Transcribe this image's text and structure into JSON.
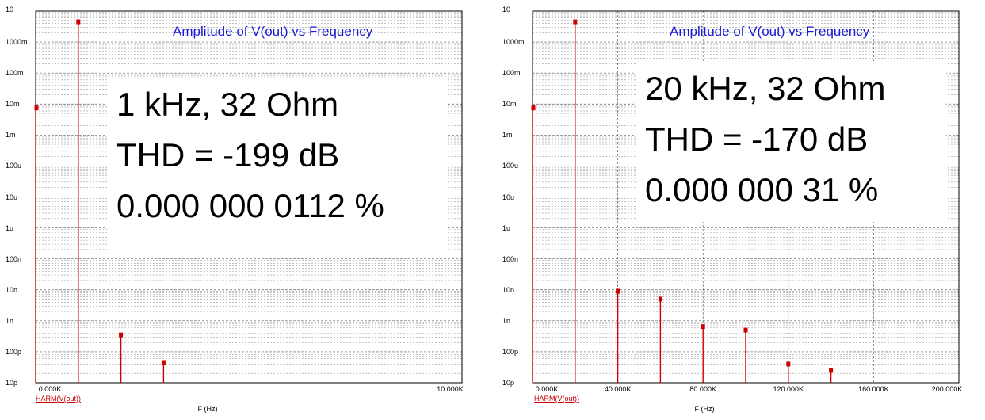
{
  "chart_data": [
    {
      "type": "bar",
      "title": "Amplitude of V(out) vs Frequency",
      "xlabel": "F (Hz)",
      "legend": "HARM(V(out))",
      "yscale": "log",
      "ylim": [
        1e-11,
        10
      ],
      "yticks": [
        "10p",
        "100p",
        "1n",
        "10n",
        "100n",
        "1u",
        "10u",
        "100u",
        "1m",
        "10m",
        "100m",
        "1000m",
        "10"
      ],
      "xlim": [
        0,
        10000
      ],
      "xticks": [
        {
          "v": 0,
          "label": "0.000K"
        },
        {
          "v": 10000,
          "label": "10.000K"
        }
      ],
      "x": [
        0,
        1000,
        2000,
        3000
      ],
      "values": [
        0.0075,
        4.5,
        3.5e-10,
        4.5e-11
      ],
      "annotation": [
        "1 kHz, 32 Ohm",
        "THD = -199 dB",
        "0.000 000 0112 %"
      ],
      "colors": {
        "stem": "#cc0000",
        "title": "#1a1ad8"
      }
    },
    {
      "type": "bar",
      "title": "Amplitude of V(out) vs Frequency",
      "xlabel": "F (Hz)",
      "legend": "HARM(V(out))",
      "yscale": "log",
      "ylim": [
        1e-11,
        10
      ],
      "yticks": [
        "10p",
        "100p",
        "1n",
        "10n",
        "100n",
        "1u",
        "10u",
        "100u",
        "1m",
        "10m",
        "100m",
        "1000m",
        "10"
      ],
      "xlim": [
        0,
        200000
      ],
      "xticks": [
        {
          "v": 0,
          "label": "0.000K"
        },
        {
          "v": 40000,
          "label": "40.000K"
        },
        {
          "v": 80000,
          "label": "80.000K"
        },
        {
          "v": 120000,
          "label": "120.000K"
        },
        {
          "v": 160000,
          "label": "160.000K"
        },
        {
          "v": 200000,
          "label": "200.000K"
        }
      ],
      "x": [
        0,
        20000,
        40000,
        60000,
        80000,
        100000,
        120000,
        140000
      ],
      "values": [
        0.0075,
        4.5,
        9e-09,
        5e-09,
        6.5e-10,
        5e-10,
        4e-11,
        2.5e-11
      ],
      "annotation": [
        "20 kHz, 32 Ohm",
        "THD = -170 dB",
        "0.000 000 31 %"
      ],
      "colors": {
        "stem": "#cc0000",
        "title": "#1a1ad8"
      }
    }
  ]
}
